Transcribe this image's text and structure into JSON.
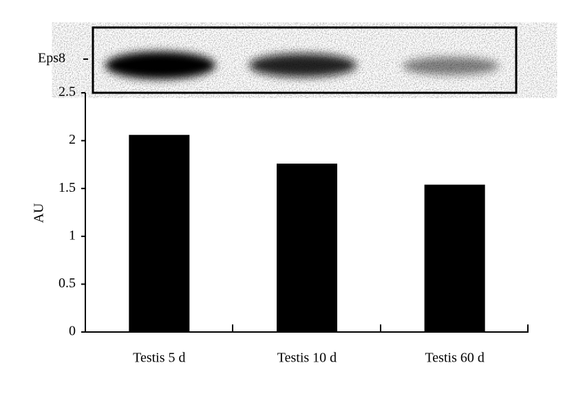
{
  "chart_data": {
    "type": "bar",
    "blot_label": "Eps8",
    "ylabel": "AU",
    "categories": [
      "Testis 5 d",
      "Testis 10 d",
      "Testis 60 d"
    ],
    "values": [
      2.06,
      1.76,
      1.54
    ],
    "color": "#000000",
    "ylim": [
      0,
      2.5
    ],
    "yticks": [
      0,
      0.5,
      1,
      1.5,
      2,
      2.5
    ],
    "grid": false
  }
}
